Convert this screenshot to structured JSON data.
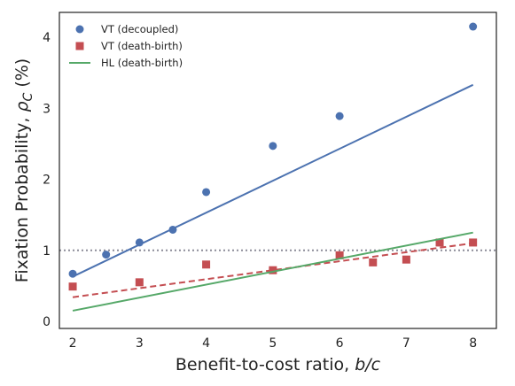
{
  "chart_data": {
    "type": "scatter",
    "title": "",
    "xlabel_prefix": "Benefit-to-cost ratio, ",
    "xlabel_math": "b/c",
    "ylabel_prefix": "Fixation Probability, ",
    "ylabel_rho": "ρ",
    "ylabel_sub": "C",
    "ylabel_suffix": " (%)",
    "xlim": [
      1.8,
      8.35
    ],
    "ylim": [
      -0.1,
      4.35
    ],
    "xticks": [
      2,
      3,
      4,
      5,
      6,
      7,
      8
    ],
    "yticks": [
      0,
      1,
      2,
      3,
      4
    ],
    "grid": false,
    "legend_position": "top-left",
    "reference_line": {
      "y": 1.0,
      "color": "#8c8c99",
      "style": "dotted"
    },
    "series": [
      {
        "name": "VT (decoupled)",
        "kind": "points",
        "marker": "circle",
        "color": "#4c72b0",
        "x": [
          2,
          2.5,
          3,
          3.5,
          4,
          5,
          6,
          8
        ],
        "y": [
          0.67,
          0.94,
          1.11,
          1.29,
          1.82,
          2.47,
          2.89,
          4.15
        ]
      },
      {
        "name": "VT (death-birth)",
        "kind": "points",
        "marker": "square",
        "color": "#c44e52",
        "x": [
          2,
          3,
          4,
          5,
          6,
          6.5,
          7,
          7.5,
          8
        ],
        "y": [
          0.49,
          0.55,
          0.8,
          0.72,
          0.93,
          0.83,
          0.87,
          1.11,
          1.11
        ]
      },
      {
        "name": "HL (death-birth)",
        "kind": "line",
        "style": "solid",
        "color": "#55a868",
        "x": [
          2,
          8
        ],
        "y": [
          0.15,
          1.25
        ]
      }
    ],
    "fits": [
      {
        "of": "VT (decoupled)",
        "color": "#4c72b0",
        "style": "solid",
        "x": [
          2,
          8
        ],
        "y": [
          0.63,
          3.33
        ]
      },
      {
        "of": "VT (death-birth)",
        "color": "#c44e52",
        "style": "dashed",
        "x": [
          2,
          8
        ],
        "y": [
          0.34,
          1.1
        ]
      }
    ]
  }
}
